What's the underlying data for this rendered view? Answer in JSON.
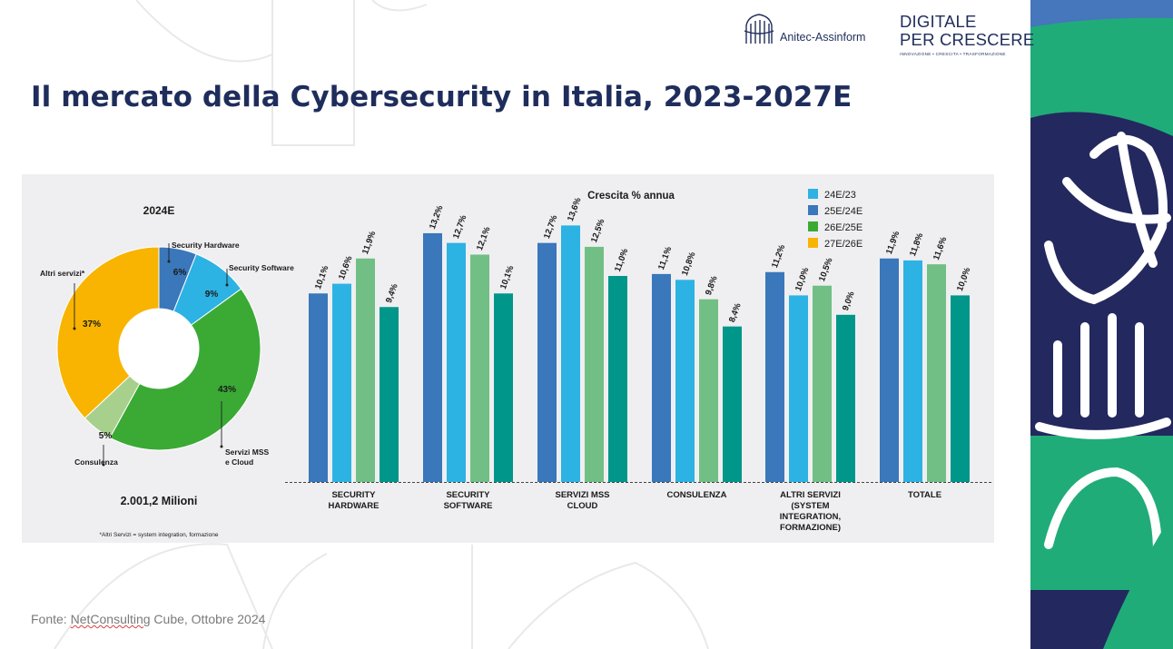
{
  "logos": {
    "anitec": "Anitec-Assinform",
    "digitale_line1": "DIGITALE",
    "digitale_line2": "PER CRESCERE",
    "digitale_sub": "INNOVAZIONE • CRESCITA • TRASFORMAZIONE"
  },
  "title": "Il mercato della Cybersecurity in Italia, 2023-2027E",
  "source": {
    "prefix": "Fonte: ",
    "name": "NetConsulting",
    "rest": " Cube, Ottobre 2024"
  },
  "colors": {
    "title": "#1f2d5c",
    "s24": "#3a77bb",
    "s25": "#2db2e4",
    "s26": "#72bf85",
    "s27": "#00978a",
    "pie_hardware": "#3a77bb",
    "pie_software": "#2db2e4",
    "pie_mss": "#3aaa35",
    "pie_consulenza": "#a8d08d",
    "pie_altri": "#f8b400",
    "legend_s1": "#2db2e4",
    "legend_s2": "#3a77bb",
    "legend_s3": "#3aaa35",
    "legend_s4": "#f8b400",
    "sidebar_blue_top": "#4676bb",
    "sidebar_green": "#20ac79",
    "sidebar_navy": "#23295e"
  },
  "chart_data": [
    {
      "type": "pie",
      "title": "2024E",
      "categories": [
        "Security Hardware",
        "Security Software",
        "Servizi MSS e Cloud",
        "Consulenza",
        "Altri servizi*"
      ],
      "values": [
        6,
        9,
        43,
        5,
        37
      ],
      "value_labels": [
        "6%",
        "9%",
        "43%",
        "5%",
        "37%"
      ],
      "total_label": "2.001,2 Milioni",
      "footnote": "*Altri Servizi = system integration, formazione"
    },
    {
      "type": "bar",
      "title": "Crescita % annua",
      "categories": [
        [
          "SECURITY",
          "HARDWARE"
        ],
        [
          "SECURITY",
          "SOFTWARE"
        ],
        [
          "SERVIZI MSS",
          "CLOUD"
        ],
        [
          "CONSULENZA"
        ],
        [
          "ALTRI SERVIZI",
          "(SYSTEM",
          "INTEGRATION,",
          "FORMAZIONE)"
        ],
        [
          "TOTALE"
        ]
      ],
      "legend": [
        "24E/23",
        "25E/24E",
        "26E/25E",
        "27E/26E"
      ],
      "series": [
        {
          "values": [
            10.1,
            13.2,
            12.7,
            11.1,
            11.2,
            11.9
          ],
          "labels": [
            "10,1%",
            "13,2%",
            "12,7%",
            "11,1%",
            "11,2%",
            "11,9%"
          ]
        },
        {
          "values": [
            10.6,
            12.7,
            13.6,
            10.8,
            10.0,
            11.8
          ],
          "labels": [
            "10,6%",
            "12,7%",
            "13,6%",
            "10,8%",
            "10,0%",
            "11,8%"
          ]
        },
        {
          "values": [
            11.9,
            12.1,
            12.5,
            9.8,
            10.5,
            11.6
          ],
          "labels": [
            "11,9%",
            "12,1%",
            "12,5%",
            "9,8%",
            "10,5%",
            "11,6%"
          ]
        },
        {
          "values": [
            9.4,
            10.1,
            11.0,
            8.4,
            9.0,
            10.0
          ],
          "labels": [
            "9,4%",
            "10,1%",
            "11,0%",
            "8,4%",
            "9,0%",
            "10,0%"
          ]
        }
      ]
    }
  ]
}
